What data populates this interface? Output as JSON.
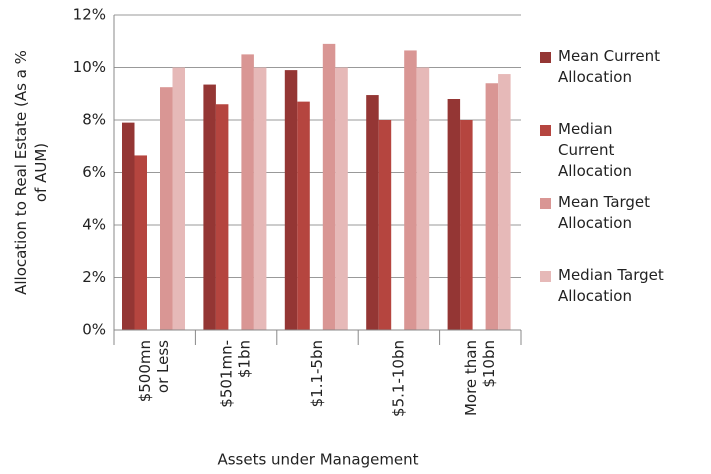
{
  "chart_data": {
    "type": "bar",
    "xlabel": "Assets under Management",
    "ylabel": [
      "Allocation to Real Estate (As a %",
      "of AUM)"
    ],
    "categories": [
      [
        "$500mn",
        "or Less"
      ],
      [
        "$501mn-",
        "$1bn"
      ],
      [
        "$1.1-5bn"
      ],
      [
        "$5.1-10bn"
      ],
      [
        "More than",
        "$10bn"
      ]
    ],
    "series": [
      {
        "name": "Mean Current Allocation",
        "color": "#943634",
        "values": [
          7.9,
          9.35,
          9.9,
          8.95,
          8.8
        ]
      },
      {
        "name": "Median Current Allocation",
        "color": "#b5453f",
        "values": [
          6.65,
          8.6,
          8.7,
          8.0,
          8.0
        ]
      },
      {
        "name": "Mean Target Allocation",
        "color": "#d99694",
        "values": [
          9.25,
          10.5,
          10.9,
          10.65,
          9.4
        ]
      },
      {
        "name": "Median Target Allocation",
        "color": "#e6b9b8",
        "values": [
          10.0,
          10.0,
          10.0,
          10.0,
          9.75
        ]
      }
    ],
    "ylim": [
      0,
      12
    ],
    "yticks": [
      {
        "value": 0,
        "label": "0%"
      },
      {
        "value": 2,
        "label": "2%"
      },
      {
        "value": 4,
        "label": "4%"
      },
      {
        "value": 6,
        "label": "6%"
      },
      {
        "value": 8,
        "label": "8%"
      },
      {
        "value": 10,
        "label": "10%"
      },
      {
        "value": 12,
        "label": "12%"
      }
    ],
    "grid": true,
    "legend": "right"
  }
}
